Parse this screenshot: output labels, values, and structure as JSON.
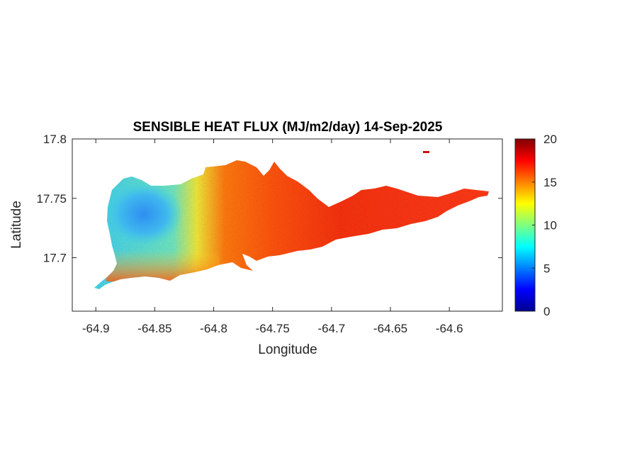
{
  "title": "SENSIBLE HEAT FLUX (MJ/m2/day) 14-Sep-2025",
  "xlabel": "Longitude",
  "ylabel": "Latitude",
  "x_ticks": [
    "-64.9",
    "-64.85",
    "-64.8",
    "-64.75",
    "-64.7",
    "-64.65",
    "-64.6"
  ],
  "y_ticks": [
    "17.8",
    "17.75",
    "17.7"
  ],
  "colorbar": {
    "ticks": [
      "20",
      "15",
      "10",
      "5",
      "0"
    ],
    "colormap": "jet",
    "colors": [
      "#00008f",
      "#0000ff",
      "#00ffff",
      "#ffff00",
      "#ff0000",
      "#800000"
    ]
  },
  "chart_data": {
    "type": "heatmap",
    "title": "SENSIBLE HEAT FLUX (MJ/m2/day) 14-Sep-2025",
    "xlabel": "Longitude",
    "ylabel": "Latitude",
    "xlim": [
      -64.92,
      -64.555
    ],
    "ylim": [
      17.655,
      17.8
    ],
    "clim": [
      0,
      20
    ],
    "region_values": [
      {
        "lon_range": [
          -64.885,
          -64.835
        ],
        "lat_range": [
          17.715,
          17.768
        ],
        "approx_value": 8
      },
      {
        "lon_range": [
          -64.84,
          -64.81
        ],
        "lat_range": [
          17.705,
          17.76
        ],
        "approx_value": 12
      },
      {
        "lon_range": [
          -64.9,
          -64.8
        ],
        "lat_range": [
          17.68,
          17.71
        ],
        "approx_value": 15
      },
      {
        "lon_range": [
          -64.81,
          -64.72
        ],
        "lat_range": [
          17.7,
          17.78
        ],
        "approx_value": 17
      },
      {
        "lon_range": [
          -64.72,
          -64.565
        ],
        "lat_range": [
          17.71,
          17.76
        ],
        "approx_value": 18
      }
    ]
  }
}
